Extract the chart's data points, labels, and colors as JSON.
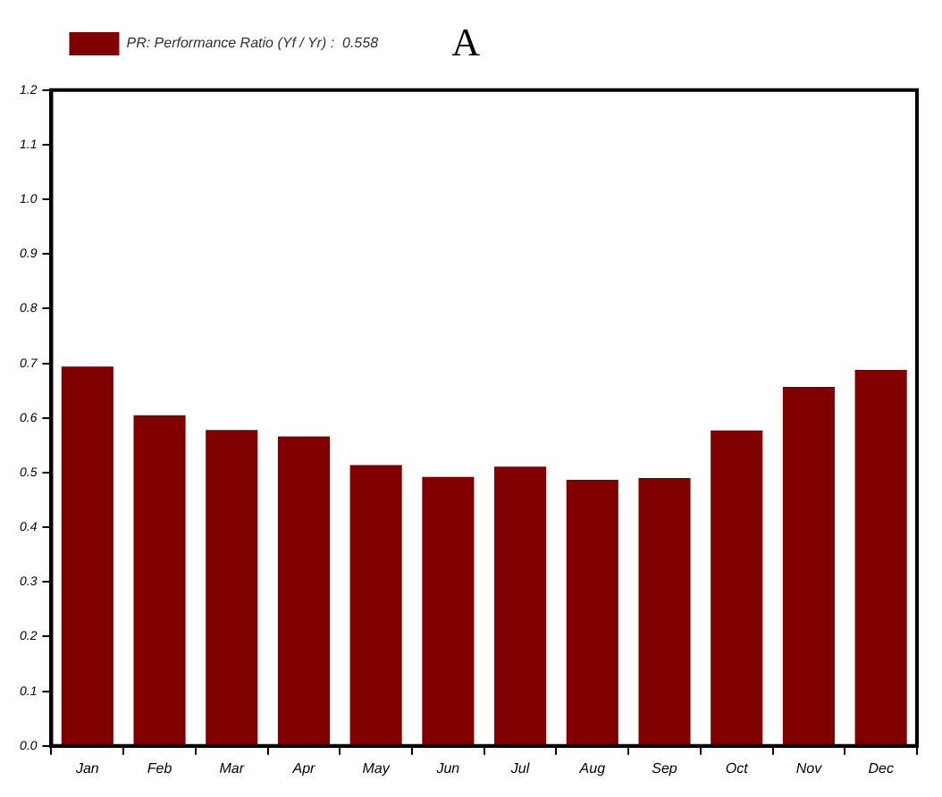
{
  "chart_data": {
    "type": "bar",
    "title": "A",
    "categories": [
      "Jan",
      "Feb",
      "Mar",
      "Apr",
      "May",
      "Jun",
      "Jul",
      "Aug",
      "Sep",
      "Oct",
      "Nov",
      "Dec"
    ],
    "series": [
      {
        "name": "PR: Performance Ratio (Yf / Yr) :  0.558",
        "color": "#800000",
        "values": [
          0.694,
          0.605,
          0.578,
          0.566,
          0.514,
          0.492,
          0.511,
          0.487,
          0.49,
          0.577,
          0.657,
          0.688
        ]
      }
    ],
    "ylim": [
      0,
      1.2
    ],
    "yticks": [
      {
        "value": 0,
        "label": "0.0"
      },
      0.1,
      0.2,
      0.3,
      0.4,
      0.5,
      0.6,
      0.7,
      0.8,
      0.9,
      {
        "value": 1,
        "label": "1.0"
      },
      1.1,
      1.2
    ],
    "grid": false,
    "legend": "top left"
  }
}
